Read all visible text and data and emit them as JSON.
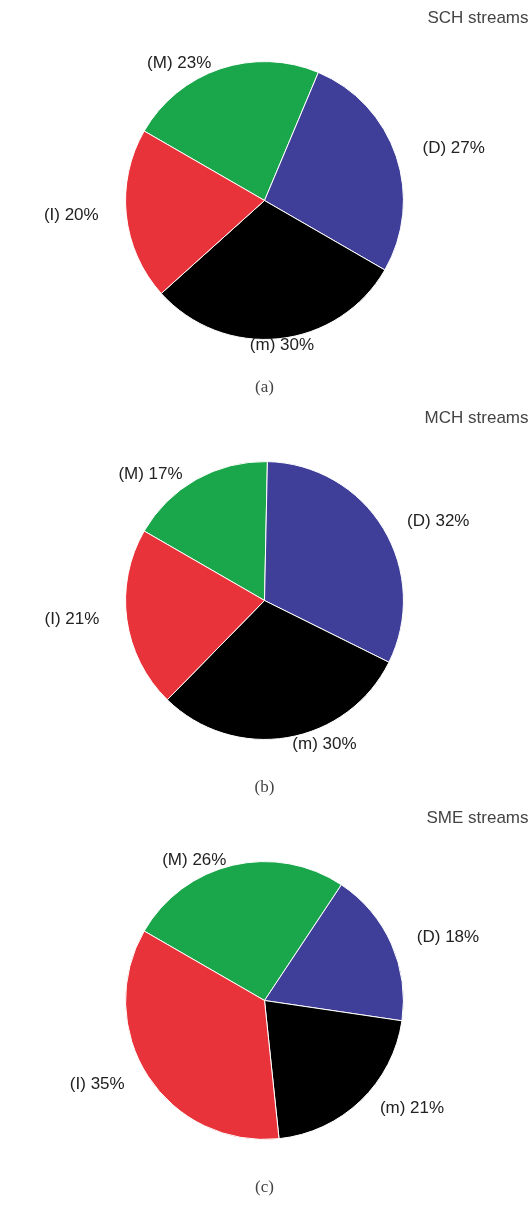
{
  "chart_data": [
    {
      "type": "pie",
      "title": "SCH streams",
      "categories": [
        "(M)",
        "(D)",
        "(m)",
        "(I)"
      ],
      "values": [
        23,
        27,
        30,
        20
      ],
      "value_labels": [
        "23%",
        "27%",
        "30%",
        "20%"
      ],
      "colors": [
        "#1aa64a",
        "#3f3f9a",
        "#000000",
        "#e8333a"
      ],
      "annotations": [
        "(a)"
      ]
    },
    {
      "type": "pie",
      "title": "MCH streams",
      "categories": [
        "(M)",
        "(D)",
        "(m)",
        "(I)"
      ],
      "values": [
        17,
        32,
        30,
        21
      ],
      "value_labels": [
        "17%",
        "32%",
        "30%",
        "21%"
      ],
      "colors": [
        "#1aa64a",
        "#3f3f9a",
        "#000000",
        "#e8333a"
      ],
      "annotations": [
        "(b)"
      ]
    },
    {
      "type": "pie",
      "title": "SME streams",
      "categories": [
        "(M)",
        "(D)",
        "(m)",
        "(I)"
      ],
      "values": [
        26,
        18,
        21,
        35
      ],
      "value_labels": [
        "26%",
        "18%",
        "21%",
        "35%"
      ],
      "colors": [
        "#1aa64a",
        "#3f3f9a",
        "#000000",
        "#e8333a"
      ],
      "annotations": [
        "(c)"
      ]
    }
  ]
}
